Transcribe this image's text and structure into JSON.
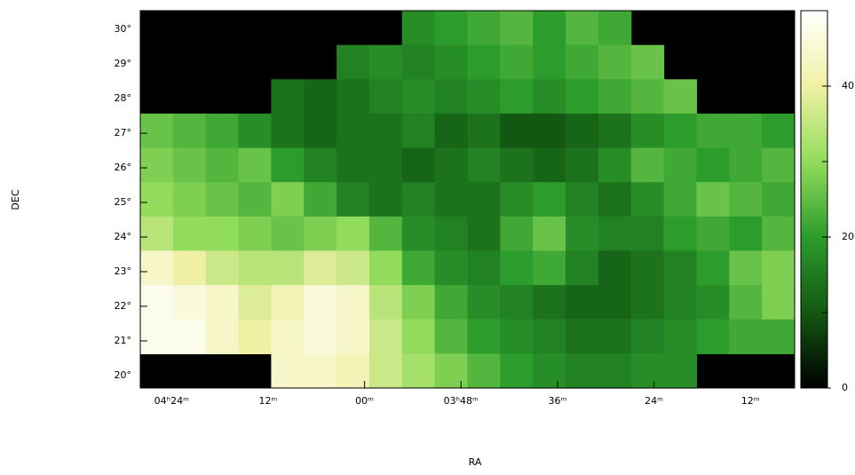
{
  "chart_data": {
    "type": "heatmap",
    "x_label": "RA",
    "y_label": "DEC",
    "xlim": [
      267.9,
      186.5
    ],
    "ylim": [
      19.64,
      30.54
    ],
    "xticks": [
      {
        "value": 264,
        "label": "04ʰ24ᵐ"
      },
      {
        "value": 252,
        "label": "12ᵐ"
      },
      {
        "value": 240,
        "label": "00ᵐ"
      },
      {
        "value": 228,
        "label": "03ʰ48ᵐ"
      },
      {
        "value": 216,
        "label": "36ᵐ"
      },
      {
        "value": 204,
        "label": "24ᵐ"
      },
      {
        "value": 192,
        "label": "12ᵐ"
      }
    ],
    "yticks": [
      {
        "value": 20,
        "label": "20°"
      },
      {
        "value": 21,
        "label": "21°"
      },
      {
        "value": 22,
        "label": "22°"
      },
      {
        "value": 23,
        "label": "23°"
      },
      {
        "value": 24,
        "label": "24°"
      },
      {
        "value": 25,
        "label": "25°"
      },
      {
        "value": 26,
        "label": "26°"
      },
      {
        "value": 27,
        "label": "27°"
      },
      {
        "value": 28,
        "label": "28°"
      },
      {
        "value": 29,
        "label": "29°"
      },
      {
        "value": 30,
        "label": "30°"
      }
    ],
    "masked_color": "#000000",
    "z": [
      [
        null,
        null,
        null,
        null,
        null,
        null,
        null,
        null,
        18,
        20,
        22,
        24,
        20,
        24,
        22,
        null,
        null,
        null,
        null,
        null
      ],
      [
        null,
        null,
        null,
        null,
        null,
        null,
        16,
        18,
        16,
        18,
        20,
        22,
        20,
        22,
        24,
        26,
        null,
        null,
        null,
        null
      ],
      [
        null,
        null,
        null,
        null,
        14,
        12,
        14,
        16,
        18,
        16,
        18,
        20,
        18,
        20,
        22,
        24,
        26,
        null,
        null,
        null
      ],
      [
        26,
        24,
        22,
        18,
        14,
        12,
        14,
        14,
        16,
        12,
        14,
        10,
        10,
        12,
        14,
        18,
        20,
        22,
        22,
        20
      ],
      [
        28,
        26,
        24,
        26,
        20,
        16,
        14,
        14,
        12,
        14,
        16,
        14,
        12,
        14,
        18,
        24,
        22,
        20,
        22,
        24
      ],
      [
        30,
        28,
        26,
        24,
        28,
        22,
        16,
        14,
        16,
        14,
        14,
        18,
        20,
        16,
        14,
        18,
        22,
        26,
        24,
        22
      ],
      [
        34,
        30,
        30,
        28,
        26,
        28,
        30,
        24,
        18,
        16,
        14,
        22,
        26,
        18,
        16,
        16,
        20,
        22,
        20,
        24
      ],
      [
        44,
        40,
        36,
        34,
        34,
        38,
        36,
        30,
        22,
        18,
        16,
        20,
        22,
        16,
        12,
        14,
        16,
        20,
        26,
        28
      ],
      [
        48,
        46,
        44,
        38,
        42,
        46,
        44,
        34,
        28,
        22,
        18,
        16,
        14,
        12,
        12,
        14,
        16,
        18,
        24,
        28
      ],
      [
        48,
        48,
        44,
        40,
        44,
        46,
        44,
        36,
        30,
        24,
        20,
        18,
        16,
        14,
        14,
        16,
        18,
        20,
        22,
        22
      ],
      [
        null,
        null,
        null,
        null,
        44,
        44,
        42,
        36,
        32,
        28,
        24,
        20,
        18,
        16,
        16,
        18,
        18,
        null,
        null,
        null
      ]
    ],
    "colorbar": {
      "lim": [
        0,
        50
      ],
      "ticks": [
        0,
        20,
        40
      ],
      "minor_ticks": [
        10,
        30
      ],
      "colorscale": [
        [
          0,
          "#000000"
        ],
        [
          10,
          "#125812"
        ],
        [
          20,
          "#2c9c2c"
        ],
        [
          30,
          "#92dc5c"
        ],
        [
          40,
          "#f0f0a4"
        ],
        [
          50,
          "#ffffff"
        ]
      ]
    }
  }
}
